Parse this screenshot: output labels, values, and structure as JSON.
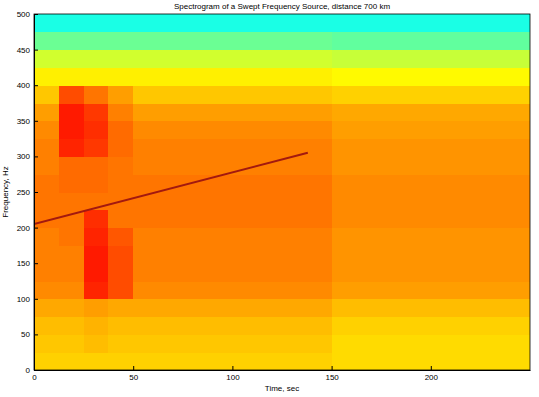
{
  "chart_data": {
    "type": "heatmap",
    "title": "Spectrogram of a Swept Frequency Source, distance 700 km",
    "x_label": "Time, sec",
    "y_label": "Frequency, Hz",
    "xlim": [
      0,
      250
    ],
    "ylim": [
      0,
      500
    ],
    "xticks": [
      0,
      50,
      100,
      150,
      200
    ],
    "yticks": [
      0,
      50,
      100,
      150,
      200,
      250,
      300,
      350,
      400,
      450,
      500
    ],
    "x_bins": [
      0,
      12.5,
      25,
      37.5,
      50,
      62.5,
      75,
      87.5,
      100,
      112.5,
      125,
      137.5,
      150,
      162.5,
      175,
      187.5,
      200,
      212.5,
      225,
      237.5,
      250
    ],
    "y_bins": [
      0,
      25,
      50,
      75,
      100,
      125,
      150,
      175,
      200,
      225,
      250,
      275,
      300,
      325,
      350,
      375,
      400,
      425,
      450,
      475,
      500
    ],
    "zlim": [
      0,
      100
    ],
    "values": [
      [
        67,
        67,
        67,
        67,
        67,
        67,
        67,
        67,
        67,
        67,
        67,
        67,
        66,
        66,
        66,
        66,
        66,
        66,
        66,
        66
      ],
      [
        68,
        68,
        69,
        68,
        68,
        68,
        68,
        68,
        68,
        68,
        68,
        68,
        66,
        66,
        66,
        66,
        66,
        66,
        66,
        66
      ],
      [
        69,
        69,
        70,
        69,
        69,
        69,
        69,
        69,
        69,
        69,
        69,
        69,
        67,
        67,
        67,
        67,
        67,
        67,
        67,
        67
      ],
      [
        71,
        71,
        72,
        71,
        71,
        71,
        71,
        71,
        71,
        71,
        71,
        71,
        69,
        69,
        69,
        69,
        69,
        69,
        69,
        69
      ],
      [
        74,
        74,
        84,
        80,
        74,
        74,
        74,
        74,
        74,
        74,
        74,
        74,
        72,
        72,
        72,
        72,
        72,
        72,
        72,
        72
      ],
      [
        75,
        75,
        85,
        80,
        75,
        75,
        75,
        75,
        75,
        75,
        75,
        75,
        73,
        73,
        73,
        73,
        73,
        73,
        73,
        73
      ],
      [
        75,
        75,
        85,
        80,
        75,
        75,
        75,
        75,
        75,
        75,
        75,
        75,
        73,
        73,
        73,
        73,
        73,
        73,
        73,
        73
      ],
      [
        75,
        76,
        84,
        79,
        75,
        75,
        75,
        75,
        75,
        75,
        75,
        75,
        73,
        73,
        73,
        73,
        73,
        73,
        73,
        73
      ],
      [
        76,
        76,
        83,
        76,
        76,
        76,
        76,
        76,
        76,
        76,
        76,
        76,
        74,
        74,
        74,
        74,
        74,
        74,
        74,
        74
      ],
      [
        76,
        76,
        76,
        76,
        76,
        76,
        76,
        76,
        76,
        76,
        76,
        76,
        74,
        74,
        74,
        74,
        74,
        74,
        74,
        74
      ],
      [
        76,
        77,
        77,
        76,
        76,
        76,
        76,
        76,
        76,
        76,
        76,
        76,
        74,
        74,
        74,
        74,
        74,
        74,
        74,
        74
      ],
      [
        75,
        77,
        77,
        76,
        75,
        75,
        75,
        75,
        75,
        75,
        75,
        75,
        73,
        73,
        73,
        73,
        73,
        73,
        73,
        73
      ],
      [
        75,
        84,
        82,
        77,
        75,
        75,
        75,
        75,
        75,
        75,
        75,
        75,
        73,
        73,
        73,
        73,
        73,
        73,
        73,
        73
      ],
      [
        74,
        85,
        83,
        77,
        74,
        74,
        74,
        74,
        74,
        74,
        74,
        74,
        72,
        72,
        72,
        72,
        72,
        72,
        72,
        72
      ],
      [
        72,
        85,
        82,
        75,
        72,
        72,
        72,
        72,
        72,
        72,
        72,
        72,
        71,
        71,
        71,
        71,
        71,
        71,
        71,
        71
      ],
      [
        68,
        80,
        76,
        72,
        68,
        68,
        68,
        68,
        68,
        68,
        68,
        68,
        67,
        67,
        67,
        67,
        67,
        67,
        67,
        67
      ],
      [
        64,
        64,
        64,
        64,
        64,
        64,
        64,
        64,
        64,
        64,
        64,
        64,
        63,
        63,
        63,
        63,
        63,
        63,
        63,
        63
      ],
      [
        58,
        58,
        58,
        58,
        58,
        58,
        58,
        58,
        58,
        58,
        58,
        58,
        57,
        57,
        57,
        57,
        57,
        57,
        57,
        57
      ],
      [
        48,
        48,
        48,
        48,
        48,
        48,
        48,
        48,
        48,
        48,
        48,
        48,
        47,
        47,
        47,
        47,
        47,
        47,
        47,
        47
      ],
      [
        40,
        40,
        40,
        40,
        40,
        40,
        40,
        40,
        40,
        40,
        40,
        40,
        40,
        40,
        40,
        40,
        40,
        40,
        40,
        40
      ]
    ],
    "series": [
      {
        "type": "line",
        "color": "#a3190f",
        "x": [
          0,
          138
        ],
        "values": [
          205,
          305
        ]
      }
    ]
  }
}
